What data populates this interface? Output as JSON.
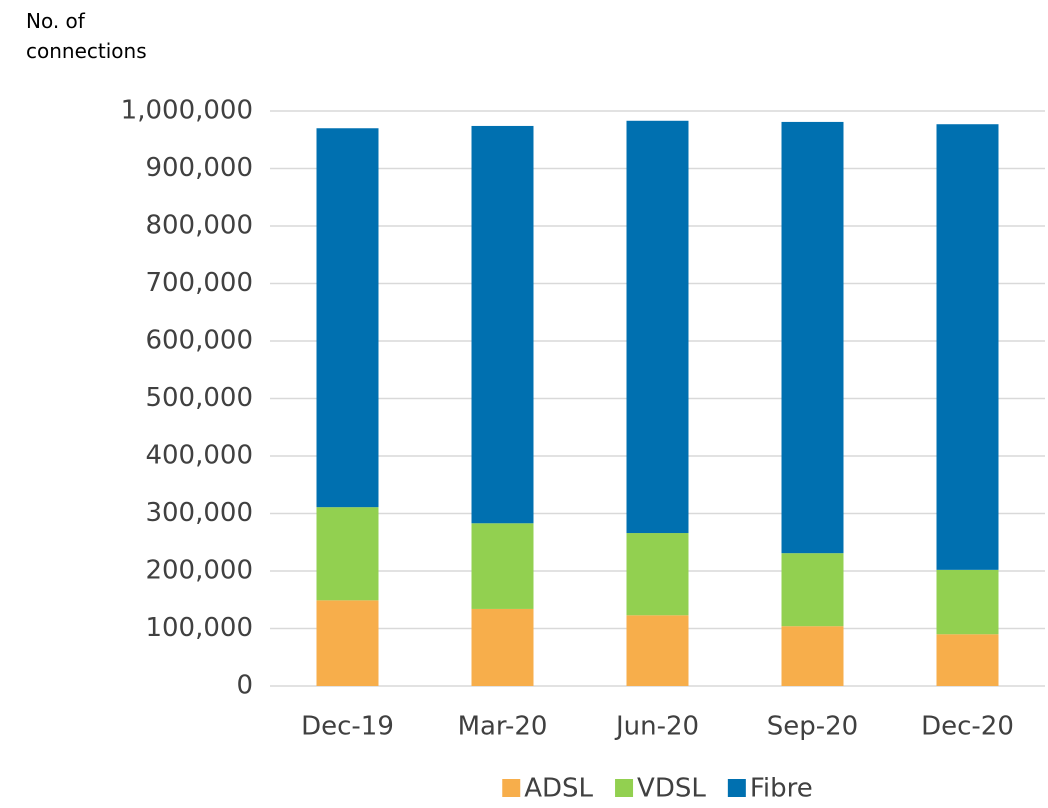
{
  "chart_data": {
    "type": "stacked_bar",
    "y_label": "No. of connections",
    "categories": [
      "Dec-19",
      "Mar-20",
      "Jun-20",
      "Sep-20",
      "Dec-20"
    ],
    "series": [
      {
        "name": "ADSL",
        "color": "#f7ae4b",
        "values": [
          149000,
          134000,
          123000,
          104000,
          90000
        ]
      },
      {
        "name": "VDSL",
        "color": "#92d050",
        "values": [
          162000,
          149000,
          143000,
          127000,
          112000
        ]
      },
      {
        "name": "Fibre",
        "color": "#0070b0",
        "values": [
          659000,
          691000,
          717000,
          750000,
          775000
        ]
      }
    ],
    "ylim": [
      0,
      1000000
    ],
    "yticks": [
      0,
      {
        "value": 100000,
        "label": "100,000"
      },
      {
        "value": 200000,
        "label": "200,000"
      },
      {
        "value": 300000,
        "label": "300,000"
      },
      {
        "value": 400000,
        "label": "400,000"
      },
      {
        "value": 500000,
        "label": "500,000"
      },
      {
        "value": 600000,
        "label": "600,000"
      },
      {
        "value": 700000,
        "label": "700,000"
      },
      {
        "value": 800000,
        "label": "800,000"
      },
      {
        "value": 900000,
        "label": "900,000"
      },
      {
        "value": 1000000,
        "label": "1,000,000"
      }
    ],
    "grid": true,
    "legend": "bottom"
  }
}
